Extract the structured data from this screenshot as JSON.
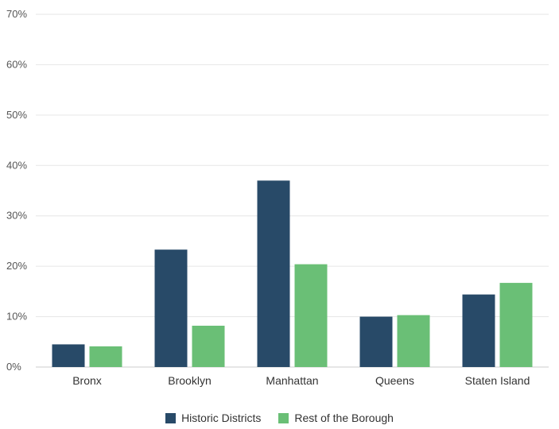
{
  "colors": {
    "historic": "#284A68",
    "rest": "#6ABF76",
    "grid": "#E6E6E6",
    "baseline": "#CCCCCC"
  },
  "chart_data": {
    "type": "bar",
    "title": "",
    "xlabel": "",
    "ylabel": "",
    "categories": [
      "Bronx",
      "Brooklyn",
      "Manhattan",
      "Queens",
      "Staten Island"
    ],
    "series": [
      {
        "name": "Historic Districts",
        "values": [
          4.5,
          23.3,
          37.0,
          10.0,
          14.4
        ],
        "color": "#284A68"
      },
      {
        "name": "Rest of the Borough",
        "values": [
          4.1,
          8.2,
          20.4,
          10.3,
          16.7
        ],
        "color": "#6ABF76"
      }
    ],
    "ylim": [
      0,
      70
    ],
    "yticks": [
      0,
      10,
      20,
      30,
      40,
      50,
      60,
      70
    ],
    "ytick_labels": [
      "0%",
      "10%",
      "20%",
      "30%",
      "40%",
      "50%",
      "60%",
      "70%"
    ],
    "grid": true,
    "legend_position": "bottom-center"
  }
}
